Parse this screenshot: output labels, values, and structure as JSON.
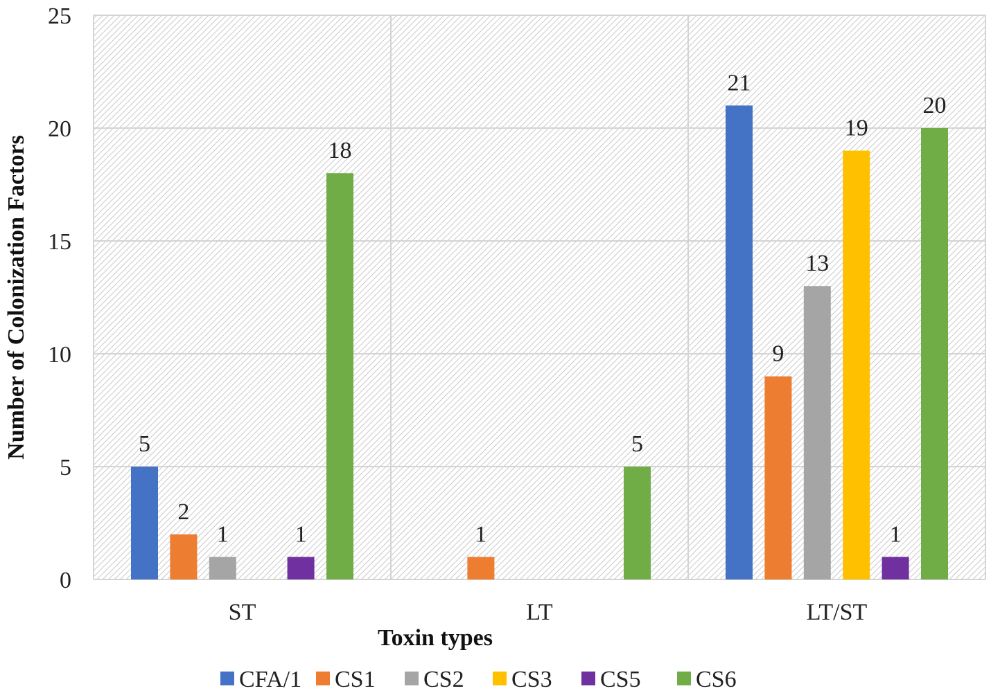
{
  "chart_data": {
    "type": "bar",
    "title": "",
    "xlabel": "Toxin types",
    "ylabel": "Number of Colonization Factors",
    "ylim": [
      0,
      25
    ],
    "yticks": [
      0,
      5,
      10,
      15,
      20,
      25
    ],
    "grid": true,
    "legend_position": "bottom",
    "categories": [
      "ST",
      "LT",
      "LT/ST"
    ],
    "series": [
      {
        "name": "CFA/1",
        "color": "#4472C4",
        "values": [
          5,
          0,
          21
        ]
      },
      {
        "name": "CS1",
        "color": "#ED7D31",
        "values": [
          2,
          1,
          9
        ]
      },
      {
        "name": "CS2",
        "color": "#A5A5A5",
        "values": [
          1,
          0,
          13
        ]
      },
      {
        "name": "CS3",
        "color": "#FFC000",
        "values": [
          0,
          0,
          19
        ]
      },
      {
        "name": "CS5",
        "color": "#7030A0",
        "values": [
          1,
          0,
          1
        ]
      },
      {
        "name": "CS6",
        "color": "#70AD47",
        "values": [
          18,
          5,
          20
        ]
      }
    ]
  }
}
